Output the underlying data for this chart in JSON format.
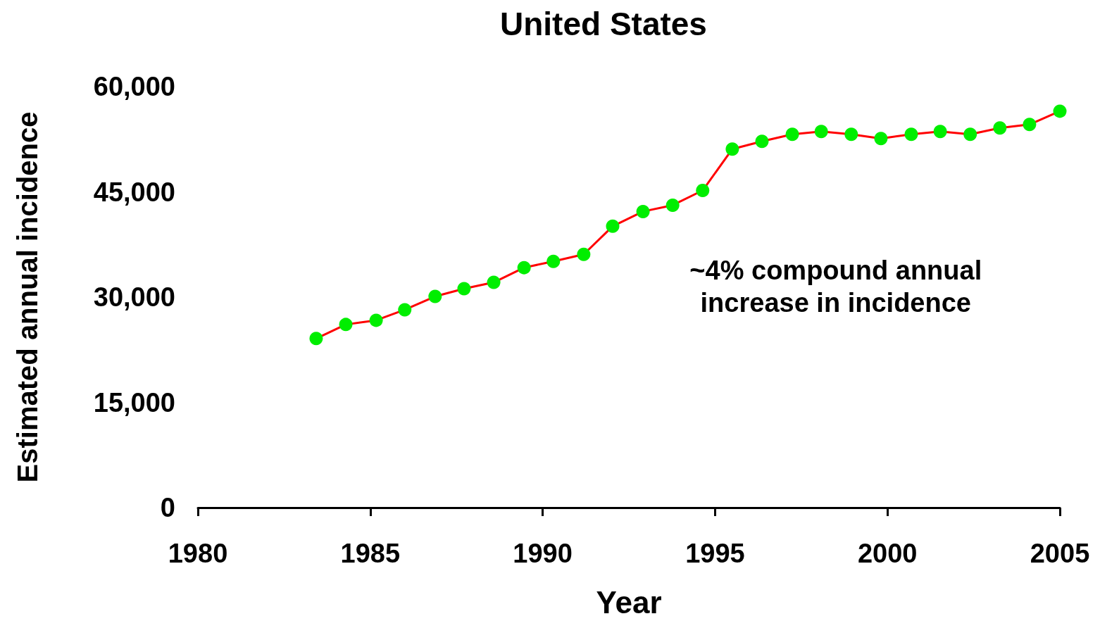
{
  "chart_data": {
    "type": "line",
    "title": "United States",
    "xlabel": "Year",
    "ylabel": "Estimated annual incidence",
    "annotations": [
      "~4% compound annual\nincrease in incidence"
    ],
    "xlim": [
      1980,
      2005
    ],
    "xticks": [
      1980,
      1985,
      1990,
      1995,
      2000,
      2005
    ],
    "ylim": [
      0,
      60000
    ],
    "yticks": [
      {
        "value": 0,
        "label": "0"
      },
      {
        "value": 15000,
        "label": "15,000"
      },
      {
        "value": 30000,
        "label": "30,000"
      },
      {
        "value": 45000,
        "label": "45,000"
      },
      {
        "value": 60000,
        "label": "60,000"
      }
    ],
    "grid": false,
    "marker": "circle",
    "line_style": "solid",
    "series": [
      {
        "color": "#ff0000",
        "colors": [
          "#00ee00",
          "#00ee00",
          "#00ee00",
          "#00ee00",
          "#00ee00",
          "#00ee00",
          "#00ee00",
          "#00ee00",
          "#00ee00",
          "#00ee00",
          "#00ee00",
          "#00ee00",
          "#00ee00",
          "#00ee00",
          "#00ee00",
          "#00ee00",
          "#00ee00",
          "#00ee00",
          "#00ee00",
          "#00ee00",
          "#00ee00",
          "#00ee00",
          "#00ee00",
          "#00ee00",
          "#00ee00",
          "#00ee00"
        ],
        "x": [
          1983.43,
          1984.29,
          1985.17,
          1986.0,
          1986.88,
          1987.72,
          1988.58,
          1989.46,
          1990.31,
          1991.19,
          1992.03,
          1992.91,
          1993.77,
          1994.64,
          1995.5,
          1996.36,
          1997.24,
          1998.08,
          1998.95,
          1999.81,
          2000.69,
          2001.53,
          2002.4,
          2003.26,
          2004.12,
          2005.0
        ],
        "values": [
          24100,
          26100,
          26700,
          28200,
          30100,
          31200,
          32100,
          34200,
          35100,
          36100,
          40100,
          42200,
          43100,
          45200,
          51100,
          52200,
          53200,
          53600,
          53200,
          52600,
          53200,
          53600,
          53200,
          54100,
          54600,
          56500
        ]
      }
    ]
  }
}
